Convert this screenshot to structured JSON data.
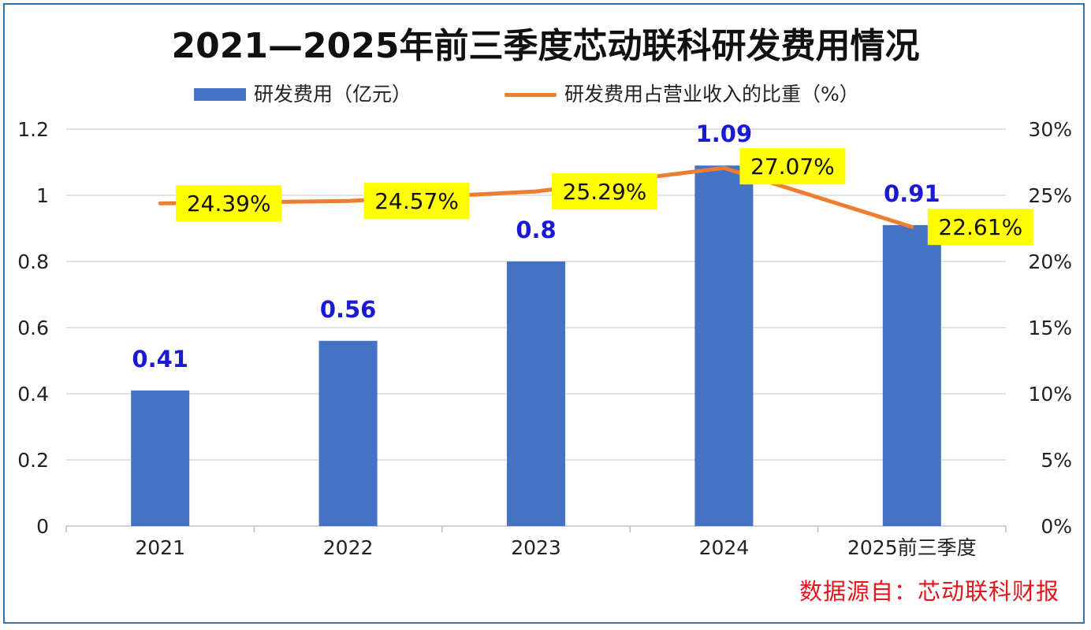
{
  "chart_data": {
    "type": "bar+line",
    "title": "2021—2025年前三季度芯动联科研发费用情况",
    "categories": [
      "2021",
      "2022",
      "2023",
      "2024",
      "2025前三季度"
    ],
    "series": [
      {
        "name": "研发费用（亿元）",
        "type": "bar",
        "axis": "left",
        "values": [
          0.41,
          0.56,
          0.8,
          1.09,
          0.91
        ],
        "labels": [
          "0.41",
          "0.56",
          "0.8",
          "1.09",
          "0.91"
        ]
      },
      {
        "name": "研发费用占营业收入的比重（%）",
        "type": "line",
        "axis": "right",
        "values": [
          24.39,
          24.57,
          25.29,
          27.07,
          22.61
        ],
        "labels": [
          "24.39%",
          "24.57%",
          "25.29%",
          "27.07%",
          "22.61%"
        ]
      }
    ],
    "y_left": {
      "ylim": [
        0,
        1.2
      ],
      "ticks": [
        "0",
        "0.2",
        "0.4",
        "0.6",
        "0.8",
        "1",
        "1.2"
      ]
    },
    "y_right": {
      "ylim": [
        0,
        30
      ],
      "ticks": [
        "0%",
        "5%",
        "10%",
        "15%",
        "20%",
        "25%",
        "30%"
      ]
    },
    "grid": true,
    "legend_position": "top-center"
  },
  "source": "数据源自：芯动联科财报",
  "colors": {
    "bar": "#4472c4",
    "line": "#ed7d31",
    "label_box": "#ffff00",
    "bar_label": "#1a1ad6",
    "source": "#e3161b",
    "frame": "#2e75b6",
    "grid": "#d9d9d9"
  }
}
